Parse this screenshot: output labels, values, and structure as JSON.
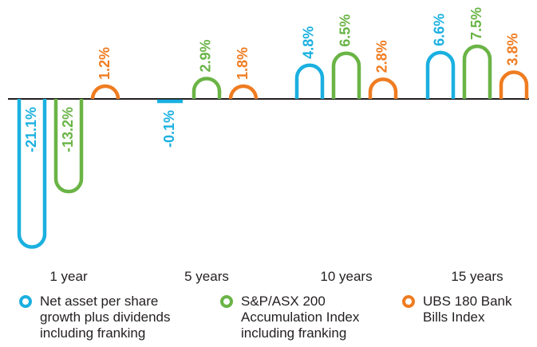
{
  "colors": {
    "nav": "#1ab0e0",
    "asx": "#6ab446",
    "ubs": "#ef7c21",
    "axis": "#231f20",
    "text": "#231f20"
  },
  "chart_data": {
    "type": "bar",
    "title": "",
    "xlabel": "",
    "ylabel": "",
    "categories": [
      "1 year",
      "5 years",
      "10 years",
      "15 years"
    ],
    "series": [
      {
        "name": "Net asset per share growth plus dividends including franking",
        "values": [
          -21.1,
          -0.1,
          4.8,
          6.6
        ],
        "labels": [
          "-21.1%",
          "-0.1%",
          "4.8%",
          "6.6%"
        ]
      },
      {
        "name": "S&P/ASX 200 Accumulation Index including franking",
        "values": [
          -13.2,
          2.9,
          6.5,
          7.5
        ],
        "labels": [
          "-13.2%",
          "2.9%",
          "6.5%",
          "7.5%"
        ]
      },
      {
        "name": "UBS 180 Bank Bills Index",
        "values": [
          1.2,
          1.8,
          2.8,
          3.8
        ],
        "labels": [
          "1.2%",
          "1.8%",
          "2.8%",
          "3.8%"
        ]
      }
    ],
    "legend": "bottom",
    "grid": false
  },
  "legend": [
    {
      "text": "Net asset per share\ngrowth plus dividends\nincluding franking",
      "color": "#1ab0e0"
    },
    {
      "text": "S&P/ASX 200\nAccumulation Index\nincluding franking",
      "color": "#6ab446"
    },
    {
      "text": "UBS 180 Bank\nBills Index",
      "color": "#ef7c21"
    }
  ]
}
